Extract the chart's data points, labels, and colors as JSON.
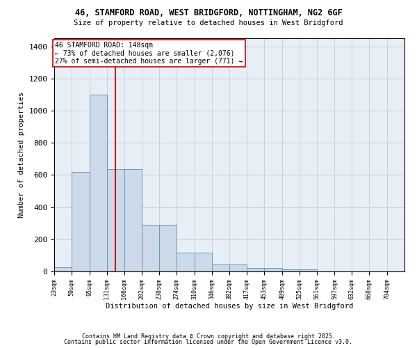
{
  "title1": "46, STAMFORD ROAD, WEST BRIDGFORD, NOTTINGHAM, NG2 6GF",
  "title2": "Size of property relative to detached houses in West Bridgford",
  "xlabel": "Distribution of detached houses by size in West Bridgford",
  "ylabel": "Number of detached properties",
  "bar_color": "#ccd9e8",
  "bar_edge_color": "#6699bb",
  "bg_color": "#e8eef6",
  "grid_color": "#c5cdd8",
  "vline_color": "#cc0000",
  "vline_x": 148,
  "annotation_text": "46 STAMFORD ROAD: 148sqm\n← 73% of detached houses are smaller (2,076)\n27% of semi-detached houses are larger (771) →",
  "bin_edges": [
    23,
    59,
    95,
    131,
    166,
    202,
    238,
    274,
    310,
    346,
    382,
    417,
    453,
    489,
    525,
    561,
    597,
    632,
    668,
    704,
    740
  ],
  "bin_heights": [
    25,
    620,
    1100,
    635,
    635,
    290,
    290,
    115,
    115,
    45,
    45,
    20,
    20,
    15,
    15,
    0,
    0,
    0,
    0,
    0
  ],
  "ylim": [
    0,
    1450
  ],
  "yticks": [
    0,
    200,
    400,
    600,
    800,
    1000,
    1200,
    1400
  ],
  "footer1": "Contains HM Land Registry data © Crown copyright and database right 2025.",
  "footer2": "Contains public sector information licensed under the Open Government Licence v3.0."
}
